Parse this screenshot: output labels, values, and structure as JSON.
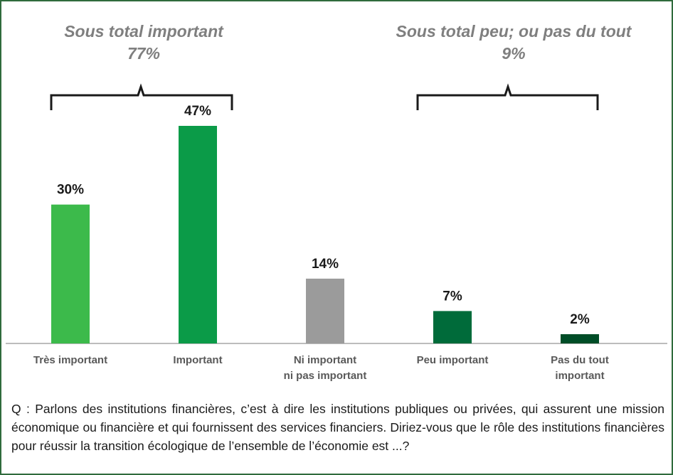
{
  "chart_data": {
    "type": "bar",
    "categories": [
      "Très important",
      "Important",
      "Ni important\nni pas important",
      "Peu important",
      "Pas du tout\nimportant"
    ],
    "values": [
      30,
      47,
      14,
      7,
      2
    ],
    "value_labels": [
      "30%",
      "47%",
      "14%",
      "7%",
      "2%"
    ],
    "colors": [
      "#3cba4b",
      "#0b9b48",
      "#9b9b9b",
      "#006b3a",
      "#004d27"
    ],
    "annotations": [
      [
        "Sous total important",
        "77%"
      ],
      [
        "Sous total peu; ou pas du tout",
        "9%"
      ]
    ],
    "question": "Q : Parlons des institutions financières, c’est à dire les institutions publiques ou privées, qui assurent une mission économique ou financière et qui fournissent des services financiers. Diriez-vous que le rôle des institutions financières pour réussir la transition écologique de l’ensemble de l’économie est ...?"
  }
}
